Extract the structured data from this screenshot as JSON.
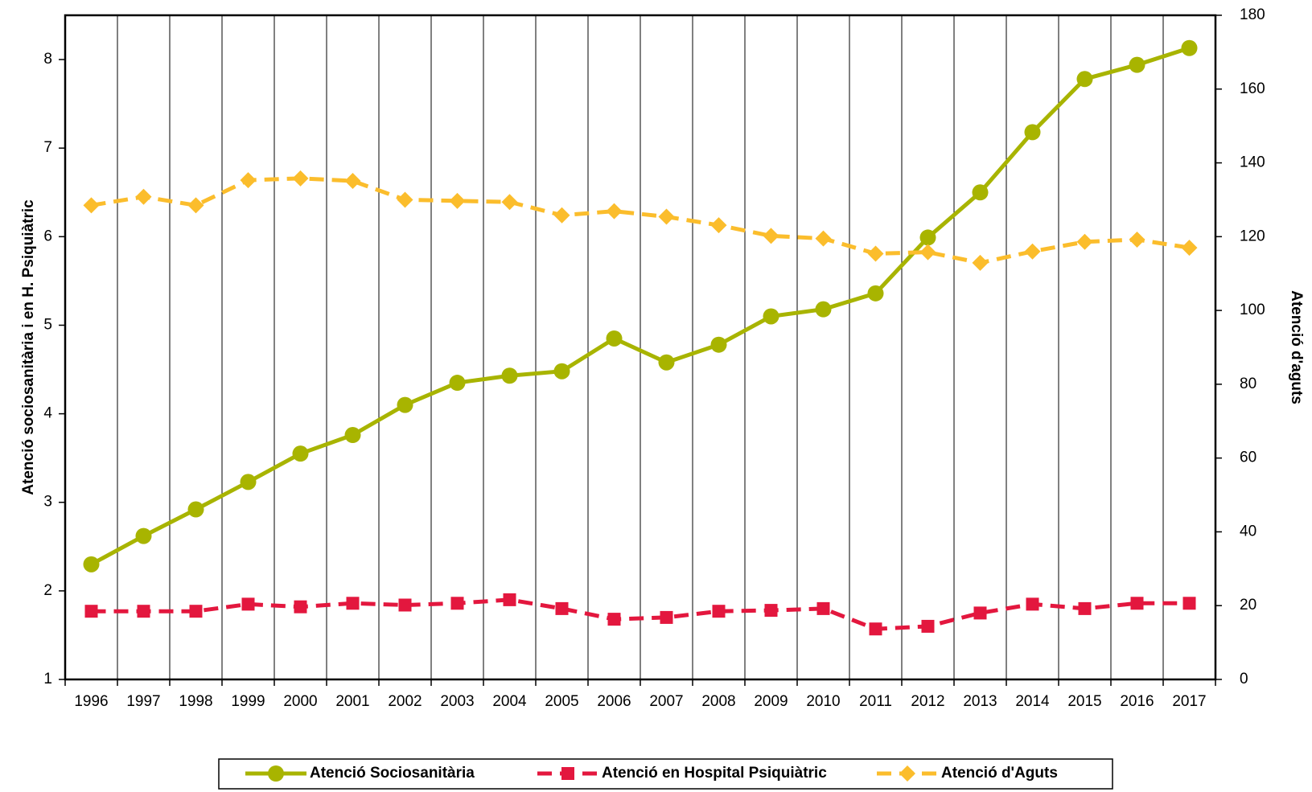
{
  "chart_data": {
    "type": "line",
    "y_label": "Atenció sociosanitària i  en H. Psiquiàtric",
    "y2_label": "Atenció d'aguts",
    "categories": [
      "1996",
      "1997",
      "1998",
      "1999",
      "2000",
      "2001",
      "2002",
      "2003",
      "2004",
      "2005",
      "2006",
      "2007",
      "2008",
      "2009",
      "2010",
      "2011",
      "2012",
      "2013",
      "2014",
      "2015",
      "2016",
      "2017"
    ],
    "ylim": [
      1,
      8.5
    ],
    "yticks": [
      1,
      2,
      3,
      4,
      5,
      6,
      7,
      8
    ],
    "y2lim": [
      0,
      180
    ],
    "y2ticks": [
      0,
      20,
      40,
      60,
      80,
      100,
      120,
      140,
      160,
      180
    ],
    "legend": "bottom",
    "series": [
      {
        "name": "Atenció Sociosanitària",
        "color": "#a8b400",
        "marker": "circle",
        "dashed": false,
        "values": [
          2.3,
          2.62,
          2.92,
          3.23,
          3.55,
          3.76,
          4.1,
          4.35,
          4.43,
          4.48,
          4.85,
          4.58,
          4.78,
          5.1,
          5.18,
          5.36,
          5.99,
          6.5,
          7.18,
          7.78,
          7.94,
          8.13
        ]
      },
      {
        "name": "Atenció en Hospital Psiquiàtric",
        "color": "#e3173e",
        "marker": "square",
        "dashed": true,
        "values": [
          1.77,
          1.77,
          1.77,
          1.85,
          1.82,
          1.86,
          1.84,
          1.86,
          1.9,
          1.8,
          1.68,
          1.7,
          1.77,
          1.78,
          1.8,
          1.57,
          1.6,
          1.75,
          1.85,
          1.8,
          1.86,
          1.86
        ]
      },
      {
        "name": "Atenció d'Aguts",
        "color": "#fbbd2c",
        "marker": "diamond",
        "dashed": true,
        "axis": "y2",
        "values": [
          128.5,
          130.8,
          128.5,
          135.3,
          135.8,
          135.1,
          130,
          129.7,
          129.4,
          125.8,
          126.9,
          125.4,
          123.1,
          120.2,
          119.5,
          115.4,
          115.8,
          112.9,
          116,
          118.6,
          119.2,
          117
        ]
      }
    ]
  }
}
